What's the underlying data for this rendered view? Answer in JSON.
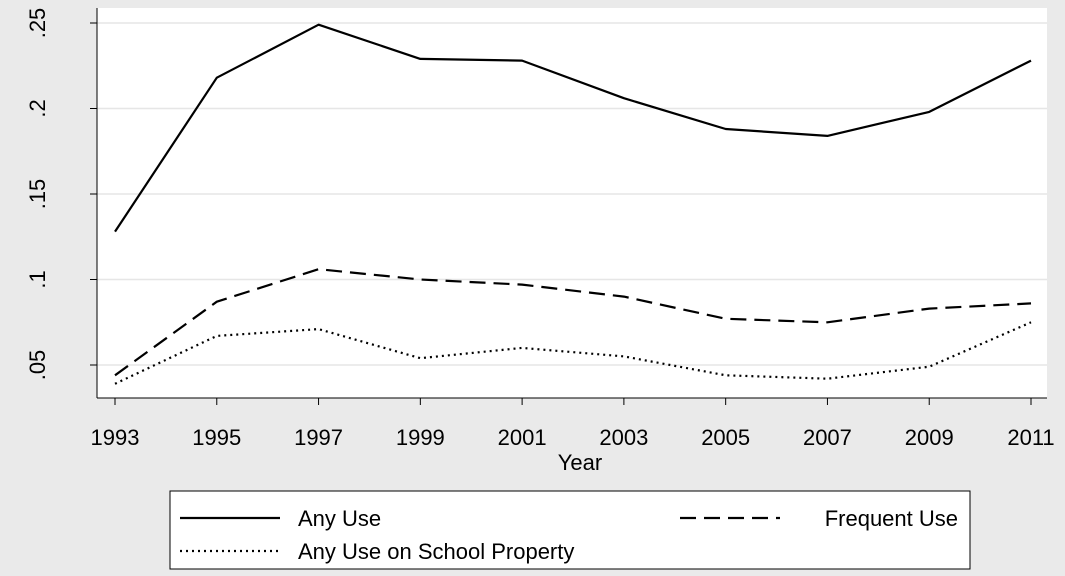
{
  "chart_data": {
    "type": "line",
    "title": "",
    "xlabel": "Year",
    "ylabel": "",
    "x": [
      1993,
      1995,
      1997,
      1999,
      2001,
      2003,
      2005,
      2007,
      2009,
      2011
    ],
    "x_tick_labels": [
      "1993",
      "1995",
      "1997",
      "1999",
      "2001",
      "2003",
      "2005",
      "2007",
      "2009",
      "2011"
    ],
    "y_ticks": [
      0.05,
      0.1,
      0.15,
      0.2,
      0.25
    ],
    "y_tick_labels": [
      ".05",
      ".1",
      ".15",
      ".2",
      ".25"
    ],
    "ylim": [
      0.04,
      0.256
    ],
    "grid": true,
    "legend_position": "bottom",
    "series": [
      {
        "name": "Any Use",
        "dash": "solid",
        "values": [
          0.128,
          0.218,
          0.249,
          0.229,
          0.228,
          0.206,
          0.188,
          0.184,
          0.198,
          0.228
        ]
      },
      {
        "name": "Frequent Use",
        "dash": "dashed",
        "values": [
          0.044,
          0.087,
          0.106,
          0.1,
          0.097,
          0.09,
          0.077,
          0.075,
          0.083,
          0.086
        ]
      },
      {
        "name": "Any Use on School Property",
        "dash": "dotted",
        "values": [
          0.039,
          0.067,
          0.071,
          0.054,
          0.06,
          0.055,
          0.044,
          0.042,
          0.049,
          0.075
        ]
      }
    ],
    "colors": {
      "line": "#000000",
      "plot_background": "#ffffff",
      "page_background": "#eaeaea",
      "grid": "#e6e6e6"
    }
  }
}
